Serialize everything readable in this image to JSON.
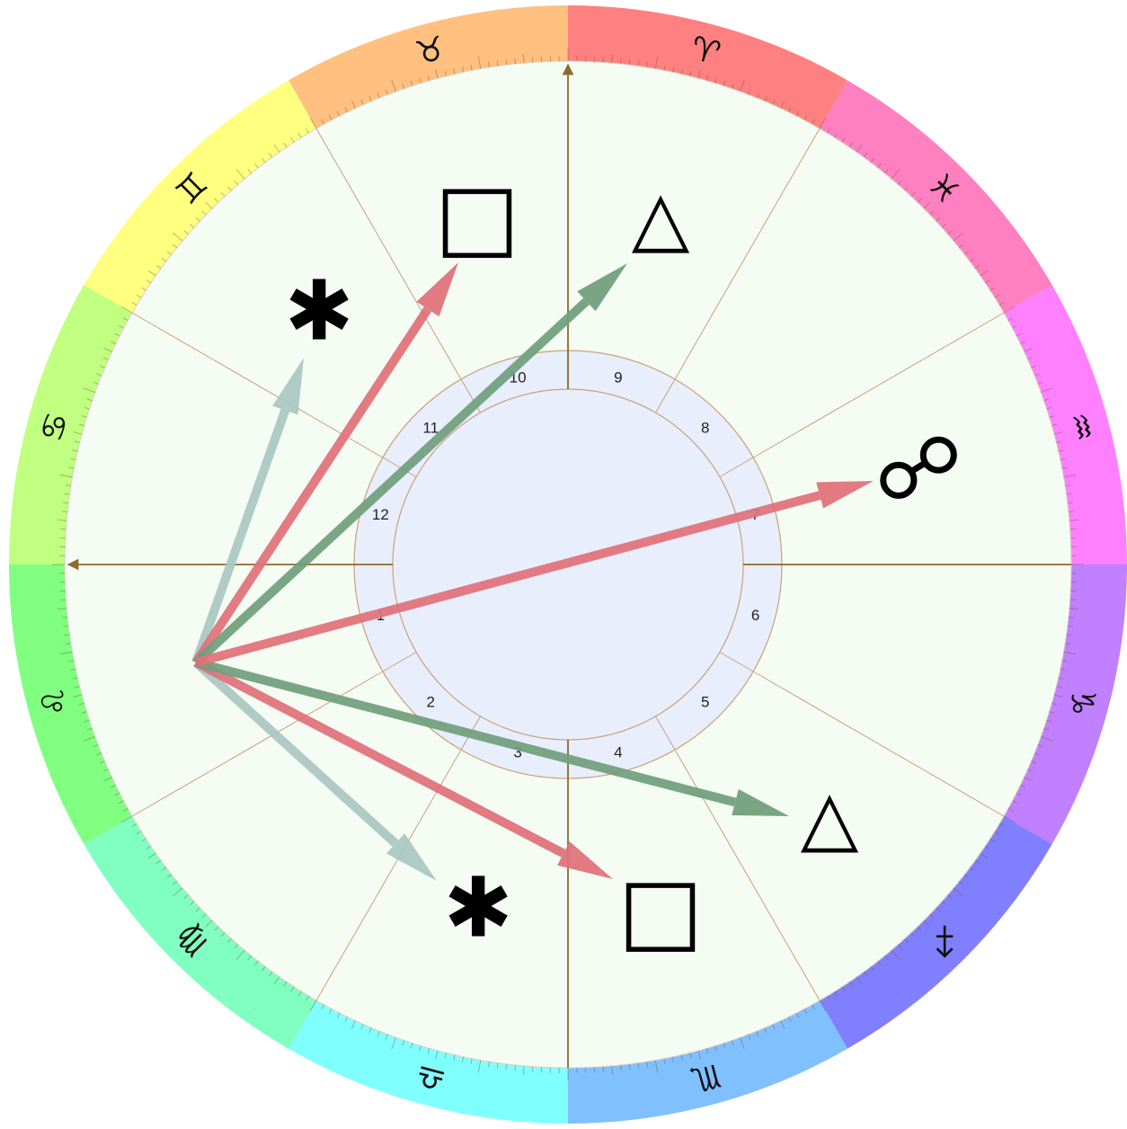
{
  "zodiac": [
    {
      "name": "aries",
      "glyph": "♈",
      "color": "#ff8080"
    },
    {
      "name": "pisces",
      "glyph": "♓",
      "color": "#ff80c0"
    },
    {
      "name": "aquarius",
      "glyph": "♒",
      "color": "#ff80ff"
    },
    {
      "name": "capricorn",
      "glyph": "♑",
      "color": "#c080ff"
    },
    {
      "name": "sagittarius",
      "glyph": "♐",
      "color": "#8080ff"
    },
    {
      "name": "scorpio",
      "glyph": "♏",
      "color": "#80c0ff"
    },
    {
      "name": "libra",
      "glyph": "♎",
      "color": "#80ffff"
    },
    {
      "name": "virgo",
      "glyph": "♍",
      "color": "#80ffc0"
    },
    {
      "name": "leo",
      "glyph": "♌",
      "color": "#80ff80"
    },
    {
      "name": "cancer",
      "glyph": "♋",
      "color": "#c0ff80"
    },
    {
      "name": "gemini",
      "glyph": "♊",
      "color": "#ffff80"
    },
    {
      "name": "taurus",
      "glyph": "♉",
      "color": "#ffc080"
    }
  ],
  "houses": [
    "1",
    "2",
    "3",
    "4",
    "5",
    "6",
    "7",
    "8",
    "9",
    "10",
    "11",
    "12"
  ],
  "aspects": [
    {
      "name": "opposition",
      "glyph": "☍",
      "color": "#e07078"
    },
    {
      "name": "trine",
      "glyph": "△",
      "color": "#6f9e7c"
    },
    {
      "name": "square",
      "glyph": "□",
      "color": "#e07078"
    },
    {
      "name": "sextile",
      "glyph": "✱",
      "color": "#a9c7c2"
    },
    {
      "name": "square",
      "glyph": "□",
      "color": "#e07078"
    },
    {
      "name": "trine",
      "glyph": "△",
      "color": "#6f9e7c"
    },
    {
      "name": "sextile",
      "glyph": "✱",
      "color": "#a9c7c2"
    }
  ],
  "colors": {
    "chart_background": "#f5fcf3",
    "inner_circle": "#e8eefc",
    "axis_line": "#8b6a2a",
    "house_line": "#c9a27a"
  }
}
